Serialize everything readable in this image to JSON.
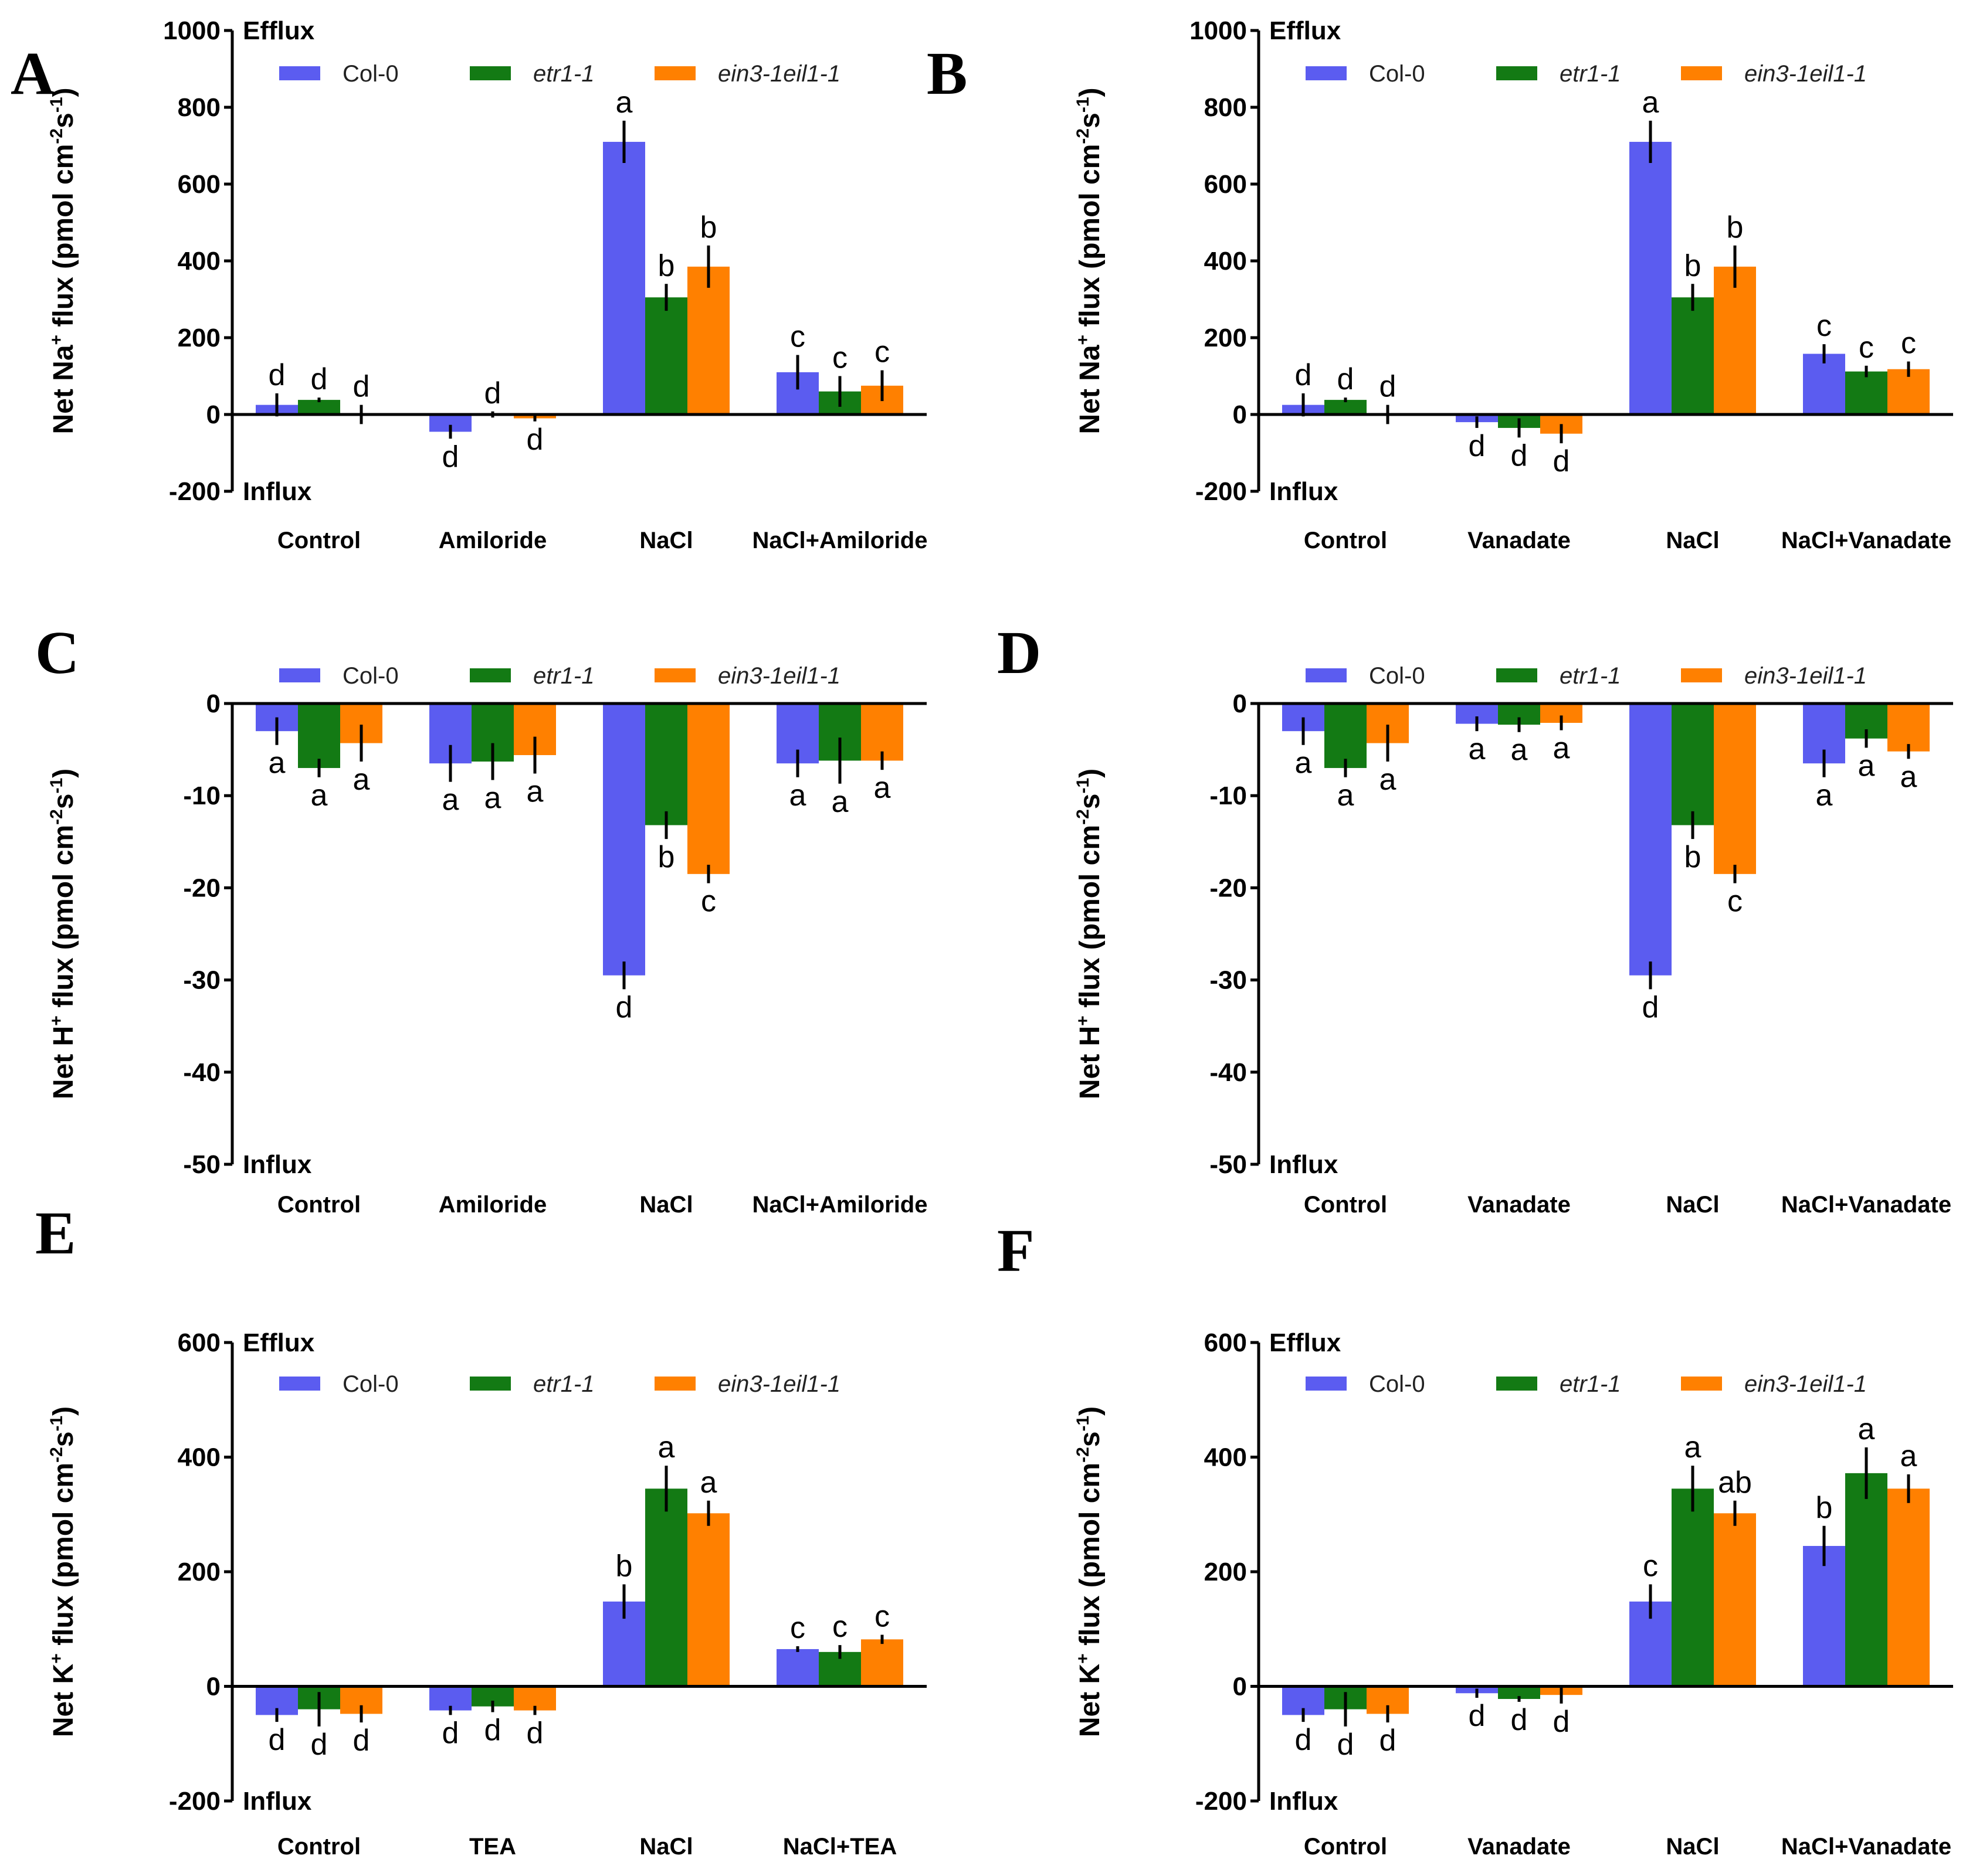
{
  "figure": {
    "series_colors": {
      "Col-0": "#5b5cf0",
      "etr1-1": "#137a14",
      "ein3-1eil1-1": "#ff8000"
    }
  },
  "chart_data": [
    {
      "id": "A",
      "panel_letter": "A",
      "type": "bar",
      "ylabel": "Net Na⁺ flux (pmol cm⁻²s⁻¹)",
      "ylabel_parts": [
        "Net Na",
        "+",
        " flux (pmol cm",
        "-2",
        "s",
        "-1",
        ")"
      ],
      "ylim": [
        -200,
        1000
      ],
      "yticks": [
        1000,
        800,
        600,
        400,
        200,
        0,
        -200
      ],
      "top_label": "Efflux",
      "bottom_label": "Influx",
      "categories": [
        "Control",
        "Amiloride",
        "NaCl",
        "NaCl+Amiloride"
      ],
      "series": [
        {
          "name": "Col-0",
          "values": [
            25,
            -45,
            710,
            110
          ],
          "errors": [
            30,
            18,
            55,
            45
          ],
          "letters": [
            "d",
            "d",
            "a",
            "c"
          ]
        },
        {
          "name": "etr1-1",
          "values": [
            38,
            0,
            305,
            60
          ],
          "errors": [
            6,
            8,
            35,
            40
          ],
          "letters": [
            "d",
            "d",
            "b",
            "c"
          ]
        },
        {
          "name": "ein3-1eil1-1",
          "values": [
            0,
            -10,
            385,
            75
          ],
          "errors": [
            25,
            8,
            55,
            40
          ],
          "letters": [
            "d",
            "d",
            "b",
            "c"
          ]
        }
      ]
    },
    {
      "id": "B",
      "panel_letter": "B",
      "type": "bar",
      "ylabel": "Net Na⁺ flux (pmol cm⁻²s⁻¹)",
      "ylabel_parts": [
        "Net Na",
        "+",
        " flux (pmol cm",
        "-2",
        "s",
        "-1",
        ")"
      ],
      "ylim": [
        -200,
        1000
      ],
      "yticks": [
        1000,
        800,
        600,
        400,
        200,
        0,
        -200
      ],
      "top_label": "Efflux",
      "bottom_label": "Influx",
      "categories": [
        "Control",
        "Vanadate",
        "NaCl",
        "NaCl+Vanadate"
      ],
      "series": [
        {
          "name": "Col-0",
          "values": [
            25,
            -20,
            710,
            158
          ],
          "errors": [
            30,
            15,
            55,
            25
          ],
          "letters": [
            "d",
            "d",
            "a",
            "c"
          ]
        },
        {
          "name": "etr1-1",
          "values": [
            38,
            -35,
            305,
            112
          ],
          "errors": [
            6,
            25,
            35,
            15
          ],
          "letters": [
            "d",
            "d",
            "b",
            "c"
          ]
        },
        {
          "name": "ein3-1eil1-1",
          "values": [
            0,
            -50,
            385,
            118
          ],
          "errors": [
            25,
            25,
            55,
            20
          ],
          "letters": [
            "d",
            "d",
            "b",
            "c"
          ]
        }
      ]
    },
    {
      "id": "C",
      "panel_letter": "C",
      "type": "bar",
      "ylabel": "Net H⁺ flux (pmol cm⁻²s⁻¹)",
      "ylabel_parts": [
        "Net H",
        "+",
        " flux (pmol cm",
        "-2",
        "s",
        "-1",
        ")"
      ],
      "ylim": [
        -50,
        0
      ],
      "yticks": [
        0,
        -10,
        -20,
        -30,
        -40,
        -50
      ],
      "top_label": "",
      "bottom_label": "Influx",
      "categories": [
        "Control",
        "Amiloride",
        "NaCl",
        "NaCl+Amiloride"
      ],
      "series": [
        {
          "name": "Col-0",
          "values": [
            -3,
            -6.5,
            -29.5,
            -6.5
          ],
          "errors": [
            1.5,
            2,
            1.5,
            1.5
          ],
          "letters": [
            "a",
            "a",
            "d",
            "a"
          ]
        },
        {
          "name": "etr1-1",
          "values": [
            -7,
            -6.3,
            -13.2,
            -6.2
          ],
          "errors": [
            1,
            2,
            1.5,
            2.5
          ],
          "letters": [
            "a",
            "a",
            "b",
            "a"
          ]
        },
        {
          "name": "ein3-1eil1-1",
          "values": [
            -4.3,
            -5.6,
            -18.5,
            -6.2
          ],
          "errors": [
            2,
            2,
            1,
            1
          ],
          "letters": [
            "a",
            "a",
            "c",
            "a"
          ]
        }
      ]
    },
    {
      "id": "D",
      "panel_letter": "D",
      "type": "bar",
      "ylabel": "Net H⁺ flux (pmol cm⁻²s⁻¹)",
      "ylabel_parts": [
        "Net H",
        "+",
        " flux (pmol cm",
        "-2",
        "s",
        "-1",
        ")"
      ],
      "ylim": [
        -50,
        0
      ],
      "yticks": [
        0,
        -10,
        -20,
        -30,
        -40,
        -50
      ],
      "top_label": "",
      "bottom_label": "Influx",
      "categories": [
        "Control",
        "Vanadate",
        "NaCl",
        "NaCl+Vanadate"
      ],
      "series": [
        {
          "name": "Col-0",
          "values": [
            -3,
            -2.2,
            -29.5,
            -6.5
          ],
          "errors": [
            1.5,
            0.8,
            1.5,
            1.5
          ],
          "letters": [
            "a",
            "a",
            "d",
            "a"
          ]
        },
        {
          "name": "etr1-1",
          "values": [
            -7,
            -2.3,
            -13.2,
            -3.8
          ],
          "errors": [
            1,
            0.8,
            1.5,
            1
          ],
          "letters": [
            "a",
            "a",
            "b",
            "a"
          ]
        },
        {
          "name": "ein3-1eil1-1",
          "values": [
            -4.3,
            -2.1,
            -18.5,
            -5.2
          ],
          "errors": [
            2,
            0.8,
            1,
            0.8
          ],
          "letters": [
            "a",
            "a",
            "c",
            "a"
          ]
        }
      ]
    },
    {
      "id": "E",
      "panel_letter": "E",
      "type": "bar",
      "ylabel": "Net K⁺ flux (pmol cm⁻²s⁻¹)",
      "ylabel_parts": [
        "Net K",
        "+",
        " flux (pmol cm",
        "-2",
        "s",
        "-1",
        ")"
      ],
      "ylim": [
        -200,
        600
      ],
      "yticks": [
        600,
        400,
        200,
        0,
        -200
      ],
      "top_label": "Efflux",
      "bottom_label": "Influx",
      "categories": [
        "Control",
        "TEA",
        "NaCl",
        "NaCl+TEA"
      ],
      "series": [
        {
          "name": "Col-0",
          "values": [
            -50,
            -42,
            148,
            65
          ],
          "errors": [
            12,
            8,
            30,
            5
          ],
          "letters": [
            "d",
            "d",
            "b",
            "c"
          ]
        },
        {
          "name": "etr1-1",
          "values": [
            -40,
            -35,
            345,
            60
          ],
          "errors": [
            30,
            10,
            40,
            12
          ],
          "letters": [
            "d",
            "d",
            "a",
            "c"
          ]
        },
        {
          "name": "ein3-1eil1-1",
          "values": [
            -48,
            -42,
            302,
            82
          ],
          "errors": [
            15,
            8,
            22,
            8
          ],
          "letters": [
            "d",
            "d",
            "a",
            "c"
          ]
        }
      ]
    },
    {
      "id": "F",
      "panel_letter": "F",
      "type": "bar",
      "ylabel": "Net K⁺ flux (pmol cm⁻²s⁻¹)",
      "ylabel_parts": [
        "Net K",
        "+",
        " flux (pmol cm",
        "-2",
        "s",
        "-1",
        ")"
      ],
      "ylim": [
        -200,
        600
      ],
      "yticks": [
        600,
        400,
        200,
        0,
        -200
      ],
      "top_label": "Efflux",
      "bottom_label": "Influx",
      "categories": [
        "Control",
        "Vanadate",
        "NaCl",
        "NaCl+Vanadate"
      ],
      "series": [
        {
          "name": "Col-0",
          "values": [
            -50,
            -12,
            148,
            245
          ],
          "errors": [
            12,
            8,
            30,
            35
          ],
          "letters": [
            "d",
            "d",
            "c",
            "b"
          ]
        },
        {
          "name": "etr1-1",
          "values": [
            -40,
            -22,
            345,
            372
          ],
          "errors": [
            30,
            5,
            40,
            45
          ],
          "letters": [
            "d",
            "d",
            "a",
            "a"
          ]
        },
        {
          "name": "ein3-1eil1-1",
          "values": [
            -48,
            -15,
            302,
            345
          ],
          "errors": [
            15,
            15,
            22,
            25
          ],
          "letters": [
            "d",
            "d",
            "ab",
            "a"
          ]
        }
      ]
    }
  ]
}
